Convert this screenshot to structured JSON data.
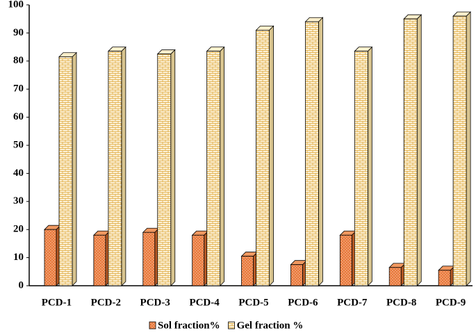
{
  "chart_data": {
    "type": "bar3d",
    "categories": [
      "PCD-1",
      "PCD-2",
      "PCD-3",
      "PCD-4",
      "PCD-5",
      "PCD-6",
      "PCD-7",
      "PCD-8",
      "PCD-9"
    ],
    "series": [
      {
        "name": "Sol fraction%",
        "color": "#e8773a",
        "values": [
          20,
          18,
          19,
          18,
          10.5,
          7.5,
          18,
          6.5,
          5.5
        ]
      },
      {
        "name": "Gel fraction %",
        "color": "#f7e3b5",
        "values": [
          81.5,
          83.5,
          82.5,
          83.5,
          91,
          94,
          83.5,
          95,
          96
        ]
      }
    ],
    "ylim": [
      0,
      100
    ],
    "yticks": [
      0,
      10,
      20,
      30,
      40,
      50,
      60,
      70,
      80,
      90,
      100
    ],
    "legend": "bottom"
  }
}
